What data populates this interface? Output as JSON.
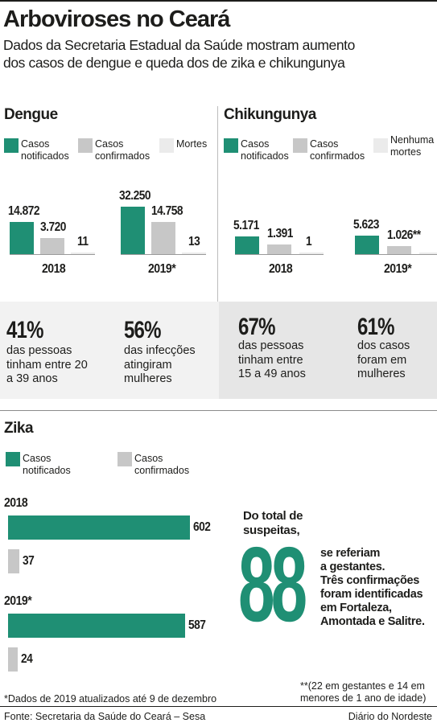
{
  "title": "Arboviroses no Ceará",
  "subtitle": {
    "line1": "Dados da Secretaria Estadual da Saúde mostram aumento",
    "line2": "dos casos de dengue e queda dos de zika e chikungunya"
  },
  "colors": {
    "notificados": "#1f8f74",
    "confirmados": "#c7c7c7",
    "mortes": "#ebebeb",
    "accent": "#1f8f74"
  },
  "dengue": {
    "title": "Dengue",
    "legend": {
      "notificados": "Casos\nnotificados",
      "confirmados": "Casos\nconfirmados",
      "mortes": "Mortes"
    }
  },
  "chik": {
    "title": "Chikungunya",
    "legend": {
      "notificados": "Casos\nnotificados",
      "confirmados": "Casos\nconfirmados",
      "mortes": "Nenhuma\nmortes"
    }
  },
  "zika": {
    "title": "Zika",
    "legend": {
      "notificados": "Casos\nnotificados",
      "confirmados": "Casos\nconfirmados"
    }
  },
  "stats": [
    {
      "pct": "41%",
      "text": "das pessoas\ntinham entre 20\na 39 anos"
    },
    {
      "pct": "56%",
      "text": "das infecções\natingiram\nmulheres"
    },
    {
      "pct": "67%",
      "text": "das pessoas\ntinham entre\n15 a 49 anos"
    },
    {
      "pct": "61%",
      "text": "dos casos\nforam em\nmulheres"
    }
  ],
  "gestantes": {
    "intro": "Do total de\nsuspeitas,",
    "number": "88",
    "text1": "se referiam\na gestantes.",
    "text2": "Três confirmações\nforam identificadas\nem Fortaleza,\nAmontada e Salitre."
  },
  "footnotes": {
    "left": "*Dados de 2019 atualizados até 9 de dezembro",
    "right": "**(22 em gestantes e 14 em\nmenores de 1 ano de idade)"
  },
  "source": "Fonte: Secretaria da Saúde do Ceará – Sesa",
  "credit": "Diário do Nordeste",
  "chart_data": [
    {
      "type": "bar",
      "title": "Dengue",
      "categories": [
        "2018",
        "2019*"
      ],
      "series": [
        {
          "name": "Casos notificados",
          "values": [
            14872,
            32250
          ],
          "labels": [
            "14.872",
            "32.250"
          ]
        },
        {
          "name": "Casos confirmados",
          "values": [
            3720,
            14758
          ],
          "labels": [
            "3.720",
            "14.758"
          ]
        },
        {
          "name": "Mortes",
          "values": [
            11,
            13
          ],
          "labels": [
            "11",
            "13"
          ]
        }
      ]
    },
    {
      "type": "bar",
      "title": "Chikungunya",
      "categories": [
        "2018",
        "2019*"
      ],
      "series": [
        {
          "name": "Casos notificados",
          "values": [
            5171,
            5623
          ],
          "labels": [
            "5.171",
            "5.623"
          ]
        },
        {
          "name": "Casos confirmados",
          "values": [
            1391,
            1026
          ],
          "labels": [
            "1.391",
            "1.026**"
          ]
        },
        {
          "name": "Nenhuma mortes",
          "values": [
            1,
            0
          ],
          "labels": [
            "1",
            ""
          ]
        }
      ]
    },
    {
      "type": "bar",
      "orientation": "horizontal",
      "title": "Zika",
      "categories": [
        "2018",
        "2019*"
      ],
      "series": [
        {
          "name": "Casos notificados",
          "values": [
            602,
            587
          ],
          "labels": [
            "602",
            "587"
          ]
        },
        {
          "name": "Casos confirmados",
          "values": [
            37,
            24
          ],
          "labels": [
            "37",
            "24"
          ]
        }
      ]
    }
  ]
}
